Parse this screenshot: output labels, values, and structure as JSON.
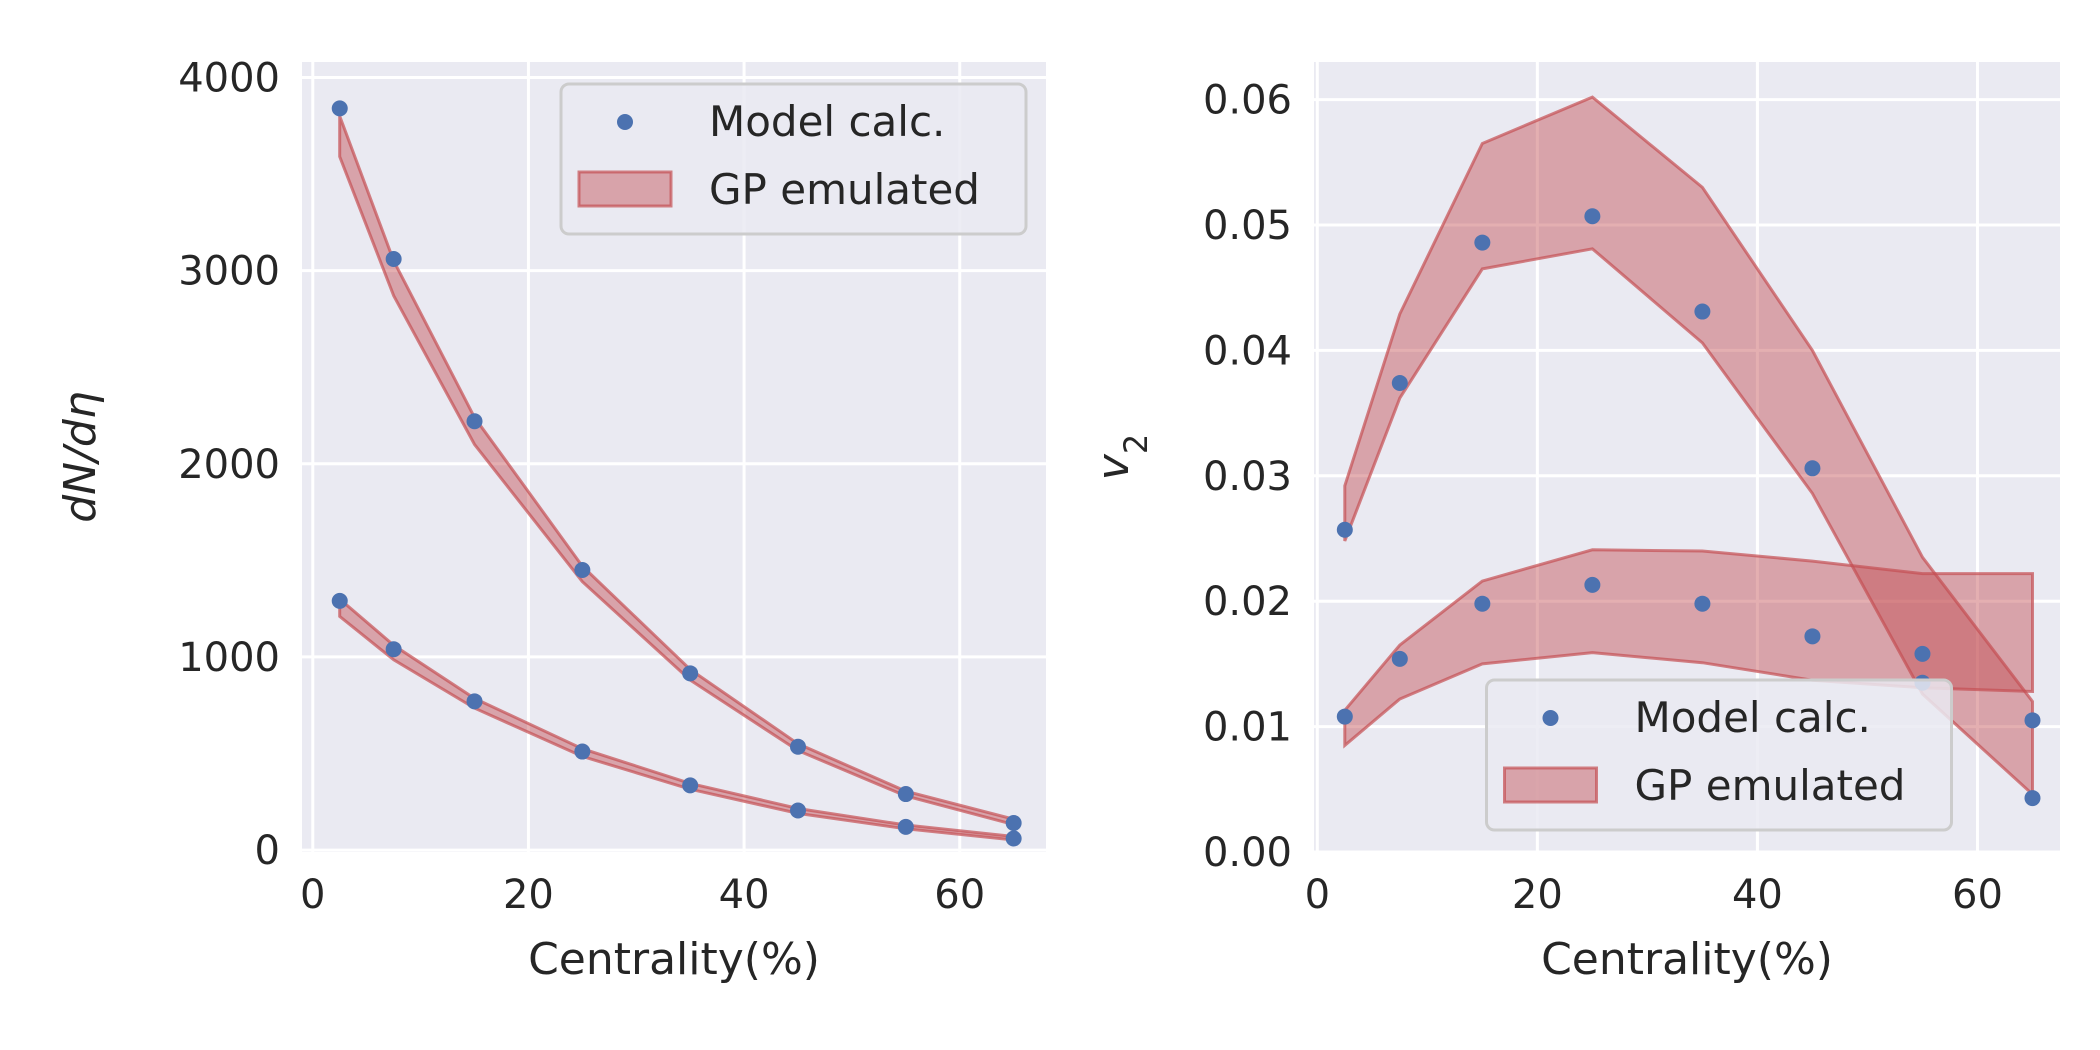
{
  "colors": {
    "background": "#eaeaf2",
    "grid": "#ffffff",
    "point": "#4c72b0",
    "band_fill": "#c44e52",
    "band_edge": "#c44e52",
    "text": "#262626"
  },
  "chart_data": [
    {
      "type": "scatter",
      "xlabel": "Centrality(%)",
      "ylabel": "dN/dη",
      "xlim": [
        -1,
        68
      ],
      "ylim": [
        -10,
        4080
      ],
      "xticks": [
        "0",
        "20",
        "40",
        "60"
      ],
      "yticks": [
        "0",
        "1000",
        "2000",
        "3000",
        "4000"
      ],
      "grid": true,
      "legend": {
        "position": "top-right",
        "entries": [
          "Model calc.",
          "GP emulated"
        ]
      },
      "x": [
        2.5,
        7.5,
        15,
        25,
        35,
        45,
        55,
        65
      ],
      "series": [
        {
          "points": [
            3840,
            3060,
            2220,
            1450,
            915,
            535,
            290,
            140
          ],
          "band_lower": [
            3590,
            2870,
            2100,
            1390,
            880,
            515,
            280,
            132
          ],
          "band_upper": [
            3800,
            3050,
            2240,
            1470,
            935,
            550,
            305,
            160
          ]
        },
        {
          "points": [
            1290,
            1040,
            770,
            510,
            335,
            205,
            120,
            60
          ],
          "band_lower": [
            1210,
            985,
            735,
            485,
            315,
            190,
            110,
            52
          ],
          "band_upper": [
            1300,
            1060,
            785,
            525,
            345,
            215,
            130,
            70
          ]
        }
      ]
    },
    {
      "type": "scatter",
      "xlabel": "Centrality(%)",
      "ylabel": "v2",
      "xlim": [
        -0.3,
        67.5
      ],
      "ylim": [
        0,
        0.063
      ],
      "xticks": [
        "0",
        "20",
        "40",
        "60"
      ],
      "yticks": [
        "0.00",
        "0.01",
        "0.02",
        "0.03",
        "0.04",
        "0.05",
        "0.06"
      ],
      "grid": true,
      "legend": {
        "position": "bottom-center",
        "entries": [
          "Model calc.",
          "GP emulated"
        ]
      },
      "x": [
        2.5,
        7.5,
        15,
        25,
        35,
        45,
        55,
        65
      ],
      "series": [
        {
          "points": [
            0.0257,
            0.0374,
            0.0486,
            0.0507,
            0.0431,
            0.0306,
            0.0135,
            0.0105
          ],
          "band_lower": [
            0.0248,
            0.0362,
            0.0465,
            0.0481,
            0.0406,
            0.0286,
            0.0126,
            0.0046
          ],
          "band_upper": [
            0.0292,
            0.0429,
            0.0565,
            0.0602,
            0.053,
            0.04,
            0.0235,
            0.012
          ]
        },
        {
          "points": [
            0.0108,
            0.0154,
            0.0198,
            0.0213,
            0.0198,
            0.0172,
            0.0158,
            0.0043
          ],
          "band_lower": [
            0.0085,
            0.0122,
            0.015,
            0.0159,
            0.0151,
            0.0137,
            0.0131,
            0.0128
          ],
          "band_upper": [
            0.0113,
            0.0165,
            0.0216,
            0.0241,
            0.024,
            0.0232,
            0.0222,
            0.0222
          ]
        }
      ]
    }
  ]
}
